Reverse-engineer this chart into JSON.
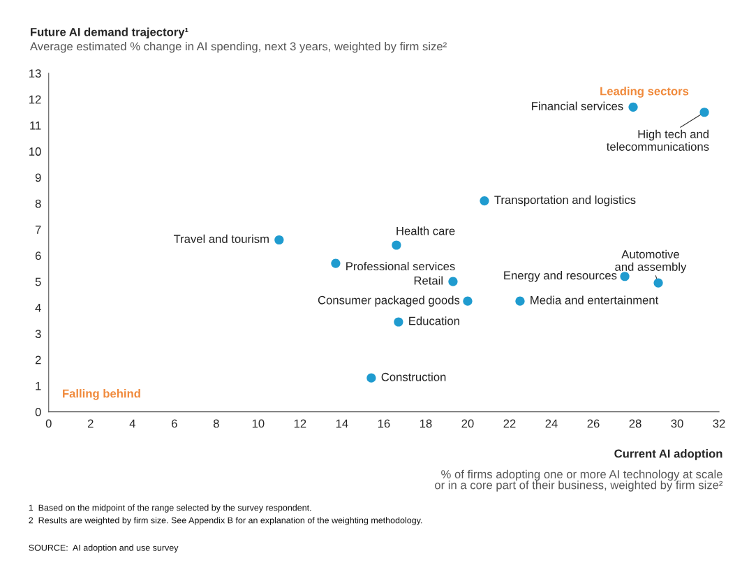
{
  "chart_data": {
    "type": "scatter",
    "title": "Future AI demand trajectory¹",
    "subtitle": "Average estimated % change in AI spending, next 3 years, weighted by firm size²",
    "xlabel": "Current AI adoption",
    "x2label": "% of firms adopting one or more AI technology at scale\nor in a core part of their business, weighted by firm size²",
    "x": [
      27.9,
      31.3,
      20.8,
      11.0,
      16.6,
      13.7,
      19.3,
      27.5,
      29.1,
      20.0,
      22.5,
      16.7,
      15.4
    ],
    "series": [
      {
        "color": "#1f9bcf",
        "values": [
          11.7,
          11.5,
          8.1,
          6.6,
          6.4,
          5.7,
          5.0,
          5.2,
          4.95,
          4.25,
          4.25,
          3.45,
          1.3
        ]
      }
    ],
    "marker": "circle",
    "xlim": [
      0,
      32
    ],
    "xticks": [
      0,
      2,
      4,
      6,
      8,
      10,
      12,
      14,
      16,
      18,
      20,
      22,
      24,
      26,
      28,
      30,
      32
    ],
    "ylim": [
      0,
      13
    ],
    "yticks": [
      0,
      1,
      2,
      3,
      4,
      5,
      6,
      7,
      8,
      9,
      10,
      11,
      12,
      13
    ],
    "grid": false,
    "legend": false,
    "annotations": [
      {
        "text": "Financial services",
        "x": 27.9,
        "y": 11.7
      },
      {
        "text": "High tech and\ntelecommunications",
        "x": 31.3,
        "y": 11.5
      },
      {
        "text": "Transportation and logistics",
        "x": 20.8,
        "y": 8.1
      },
      {
        "text": "Travel and tourism",
        "x": 11.0,
        "y": 6.6
      },
      {
        "text": "Health care",
        "x": 16.6,
        "y": 6.4
      },
      {
        "text": "Professional services",
        "x": 13.7,
        "y": 5.7
      },
      {
        "text": "Retail",
        "x": 19.3,
        "y": 5.0
      },
      {
        "text": "Energy and resources",
        "x": 27.5,
        "y": 5.2
      },
      {
        "text": "Automotive\nand assembly",
        "x": 29.1,
        "y": 4.95
      },
      {
        "text": "Consumer packaged goods",
        "x": 20.0,
        "y": 4.25
      },
      {
        "text": "Media and entertainment",
        "x": 22.5,
        "y": 4.25
      },
      {
        "text": "Education",
        "x": 16.7,
        "y": 3.45
      },
      {
        "text": "Construction",
        "x": 15.4,
        "y": 1.3
      },
      "Leading sectors",
      "Falling behind",
      "1  Based on the midpoint of the range selected by the survey respondent.",
      "2  Results are weighted by firm size. See Appendix B for an explanation of the weighting methodology.",
      "SOURCE:  AI adoption and use survey"
    ]
  }
}
